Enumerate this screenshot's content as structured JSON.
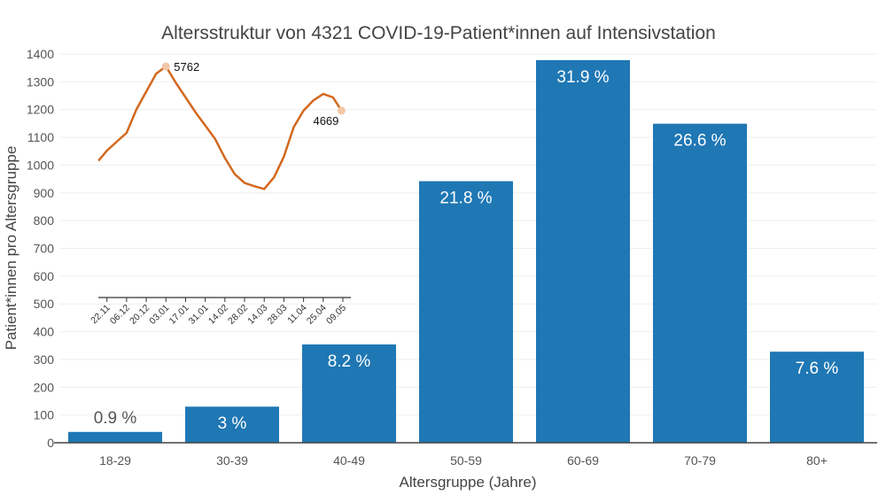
{
  "chart_data": [
    {
      "type": "bar",
      "title": "Altersstruktur von 4321 COVID-19-Patient*innen auf Intensivstation",
      "xlabel": "Altersgruppe (Jahre)",
      "ylabel": "Patient*innen pro Altersgruppe",
      "ylim": [
        0,
        1400
      ],
      "yticks": [
        0,
        100,
        200,
        300,
        400,
        500,
        600,
        700,
        800,
        900,
        1000,
        1100,
        1200,
        1300,
        1400
      ],
      "grid": true,
      "categories": [
        "18-29",
        "30-39",
        "40-49",
        "50-59",
        "60-69",
        "70-79",
        "80+"
      ],
      "values": [
        39,
        130,
        354,
        942,
        1378,
        1149,
        328
      ],
      "data_labels": [
        "0.9 %",
        "3 %",
        "8.2 %",
        "21.8 %",
        "31.9 %",
        "26.6 %",
        "7.6 %"
      ],
      "color": "#1f77b4"
    },
    {
      "type": "line",
      "position": "inset top-left",
      "color": "#d2691e",
      "xtick_labels": [
        "22.11",
        "06.12",
        "20.12",
        "03.01",
        "17.01",
        "31.01",
        "14.02",
        "28.02",
        "14.03",
        "28.03",
        "11.04",
        "25.04",
        "09.05"
      ],
      "x": [
        "16.11",
        "22.11",
        "29.11",
        "06.12",
        "13.12",
        "20.12",
        "27.12",
        "03.01",
        "10.01",
        "17.01",
        "24.01",
        "31.01",
        "07.02",
        "14.02",
        "21.02",
        "28.02",
        "07.03",
        "14.03",
        "21.03",
        "28.03",
        "04.04",
        "11.04",
        "18.04",
        "25.04",
        "02.05",
        "08.05"
      ],
      "y": [
        3430,
        3680,
        3900,
        4120,
        4700,
        5140,
        5580,
        5762,
        5360,
        4995,
        4630,
        4300,
        3970,
        3500,
        3100,
        2880,
        2800,
        2730,
        3020,
        3530,
        4260,
        4670,
        4920,
        5080,
        4995,
        4669
      ],
      "annotations": [
        {
          "x": "03.01",
          "text": "5762"
        },
        {
          "x": "08.05",
          "text": "4669"
        }
      ]
    }
  ]
}
